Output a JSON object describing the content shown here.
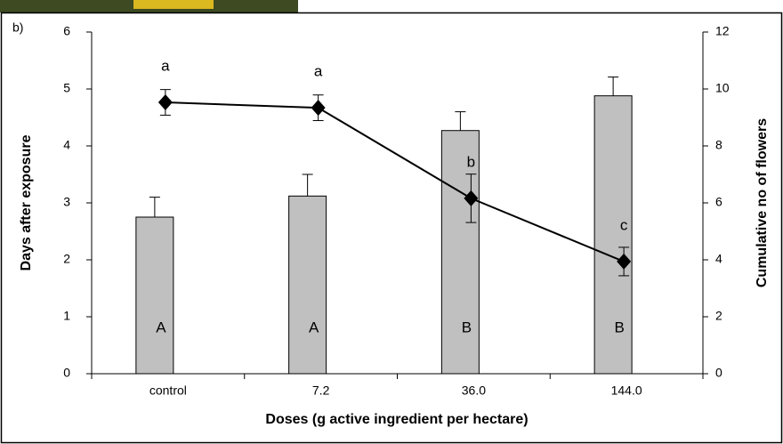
{
  "chart_data": {
    "type": "combo",
    "panel_label": "b)",
    "x_label": "Doses (g active ingredient per hectare)",
    "y_label": "Days after exposure",
    "y2_label": "Cumulative no of flowers",
    "categories": [
      "control",
      "7.2",
      "36.0",
      "144.0"
    ],
    "ylim": [
      0,
      6
    ],
    "yticks": [
      0,
      1,
      2,
      3,
      4,
      5,
      6
    ],
    "y2lim": [
      0,
      12
    ],
    "y2ticks": [
      0,
      2,
      4,
      6,
      8,
      10,
      12
    ],
    "series": [
      {
        "type": "bar",
        "color": "#c0c0c0",
        "values": [
          2.75,
          3.12,
          4.27,
          4.88
        ],
        "errors": [
          0.35,
          0.38,
          0.33,
          0.33
        ],
        "letters": [
          "A",
          "A",
          "B",
          "B"
        ]
      },
      {
        "type": "line",
        "axis": "y2",
        "color": "#000000",
        "values": [
          9.53,
          9.34,
          6.16,
          3.94
        ],
        "errors": [
          0.45,
          0.45,
          0.85,
          0.5
        ],
        "letters": [
          "a",
          "a",
          "b",
          "c"
        ]
      }
    ]
  }
}
